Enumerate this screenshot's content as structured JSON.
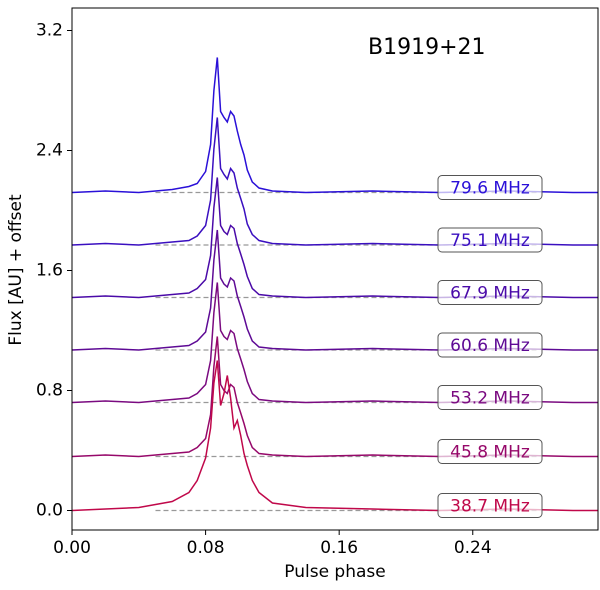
{
  "chart_data": {
    "type": "line",
    "annotation": "B1919+21",
    "xlabel": "Pulse phase",
    "ylabel": "Flux [AU] + offset",
    "xlim": [
      0,
      0.315
    ],
    "ylim": [
      -0.13,
      3.35
    ],
    "xticks": [
      {
        "value": 0,
        "label": "0.00"
      },
      0.08,
      0.16,
      0.24
    ],
    "yticks": [
      {
        "value": 0,
        "label": "0.0"
      },
      0.8,
      1.6,
      2.4,
      3.2
    ],
    "x": [
      0,
      0.02,
      0.04,
      0.06,
      0.07,
      0.075,
      0.08,
      0.083,
      0.085,
      0.087,
      0.089,
      0.091,
      0.093,
      0.095,
      0.097,
      0.099,
      0.101,
      0.103,
      0.105,
      0.108,
      0.112,
      0.12,
      0.14,
      0.18,
      0.22,
      0.26,
      0.3,
      0.315
    ],
    "series": [
      {
        "name": "79.6 MHz",
        "color": "#2a10d8",
        "baseline": 2.12,
        "values": [
          2.12,
          2.13,
          2.12,
          2.14,
          2.16,
          2.18,
          2.26,
          2.44,
          2.8,
          3.02,
          2.66,
          2.62,
          2.59,
          2.66,
          2.63,
          2.53,
          2.44,
          2.37,
          2.27,
          2.19,
          2.15,
          2.13,
          2.12,
          2.13,
          2.12,
          2.13,
          2.12,
          2.12
        ]
      },
      {
        "name": "75.1 MHz",
        "color": "#3a0fc0",
        "baseline": 1.77,
        "values": [
          1.77,
          1.78,
          1.77,
          1.79,
          1.8,
          1.83,
          1.9,
          2.07,
          2.41,
          2.62,
          2.28,
          2.24,
          2.21,
          2.28,
          2.25,
          2.15,
          2.08,
          2.01,
          1.91,
          1.84,
          1.8,
          1.78,
          1.77,
          1.78,
          1.77,
          1.78,
          1.77,
          1.77
        ]
      },
      {
        "name": "67.9 MHz",
        "color": "#4a0aa8",
        "baseline": 1.42,
        "values": [
          1.42,
          1.43,
          1.42,
          1.44,
          1.45,
          1.48,
          1.54,
          1.7,
          2.02,
          2.22,
          1.9,
          1.86,
          1.84,
          1.9,
          1.88,
          1.78,
          1.71,
          1.64,
          1.56,
          1.48,
          1.44,
          1.43,
          1.42,
          1.43,
          1.42,
          1.43,
          1.42,
          1.42
        ]
      },
      {
        "name": "60.6 MHz",
        "color": "#5e0a95",
        "baseline": 1.07,
        "values": [
          1.07,
          1.08,
          1.07,
          1.09,
          1.1,
          1.13,
          1.19,
          1.35,
          1.67,
          1.87,
          1.55,
          1.51,
          1.49,
          1.55,
          1.53,
          1.43,
          1.36,
          1.29,
          1.21,
          1.13,
          1.09,
          1.08,
          1.07,
          1.08,
          1.07,
          1.08,
          1.07,
          1.07
        ]
      },
      {
        "name": "53.2 MHz",
        "color": "#7a0a80",
        "baseline": 0.72,
        "values": [
          0.72,
          0.73,
          0.72,
          0.74,
          0.75,
          0.78,
          0.84,
          1.0,
          1.32,
          1.52,
          1.2,
          1.16,
          1.14,
          1.2,
          1.18,
          1.08,
          1.01,
          0.94,
          0.86,
          0.78,
          0.74,
          0.73,
          0.72,
          0.73,
          0.72,
          0.73,
          0.72,
          0.72
        ]
      },
      {
        "name": "45.8 MHz",
        "color": "#96086a",
        "baseline": 0.36,
        "values": [
          0.36,
          0.37,
          0.36,
          0.38,
          0.39,
          0.42,
          0.48,
          0.64,
          0.96,
          1.16,
          0.84,
          0.8,
          0.78,
          0.84,
          0.82,
          0.72,
          0.65,
          0.58,
          0.5,
          0.42,
          0.38,
          0.37,
          0.36,
          0.37,
          0.36,
          0.37,
          0.36,
          0.36
        ]
      },
      {
        "name": "38.7 MHz",
        "color": "#c0084a",
        "baseline": 0,
        "values": [
          0,
          0.01,
          0.02,
          0.06,
          0.12,
          0.2,
          0.35,
          0.55,
          0.85,
          1.0,
          0.7,
          0.78,
          0.9,
          0.75,
          0.55,
          0.6,
          0.5,
          0.38,
          0.3,
          0.2,
          0.12,
          0.05,
          0.02,
          0.01,
          0,
          0.01,
          0,
          0
        ]
      }
    ]
  }
}
